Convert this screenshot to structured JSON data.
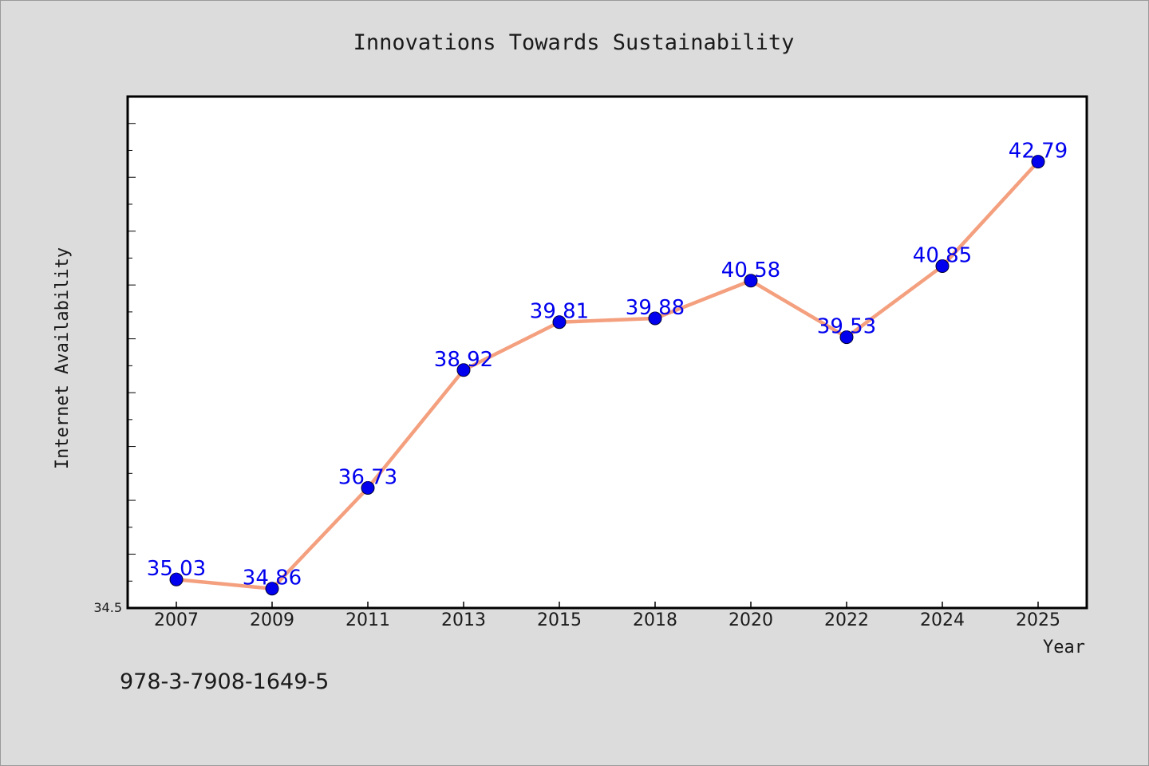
{
  "chart_data": {
    "type": "line",
    "title": "Innovations Towards Sustainability",
    "xlabel": "Year",
    "ylabel": "Internet Availability",
    "categories": [
      "2007",
      "2009",
      "2011",
      "2013",
      "2015",
      "2018",
      "2020",
      "2022",
      "2024",
      "2025"
    ],
    "series": [
      {
        "values": [
          35.03,
          34.86,
          36.73,
          38.92,
          39.81,
          39.88,
          40.58,
          39.53,
          40.85,
          42.79
        ],
        "labels": [
          "35.03",
          "34.86",
          "36.73",
          "38.92",
          "39.81",
          "39.88",
          "40.58",
          "39.53",
          "40.85",
          "42.79"
        ]
      }
    ],
    "ylim": [
      34.5,
      44.0
    ],
    "y_min_label": "34.5",
    "y_minor_tick_step": 0.5,
    "grid": false,
    "legend": "none",
    "line_color": "#f4a07f",
    "marker_color": "#0000ee",
    "label_color": "#0000ee",
    "background_color": "#dcdcdc",
    "plot_background_color": "#ffffff"
  },
  "footer": {
    "isbn": "978-3-7908-1649-5"
  }
}
